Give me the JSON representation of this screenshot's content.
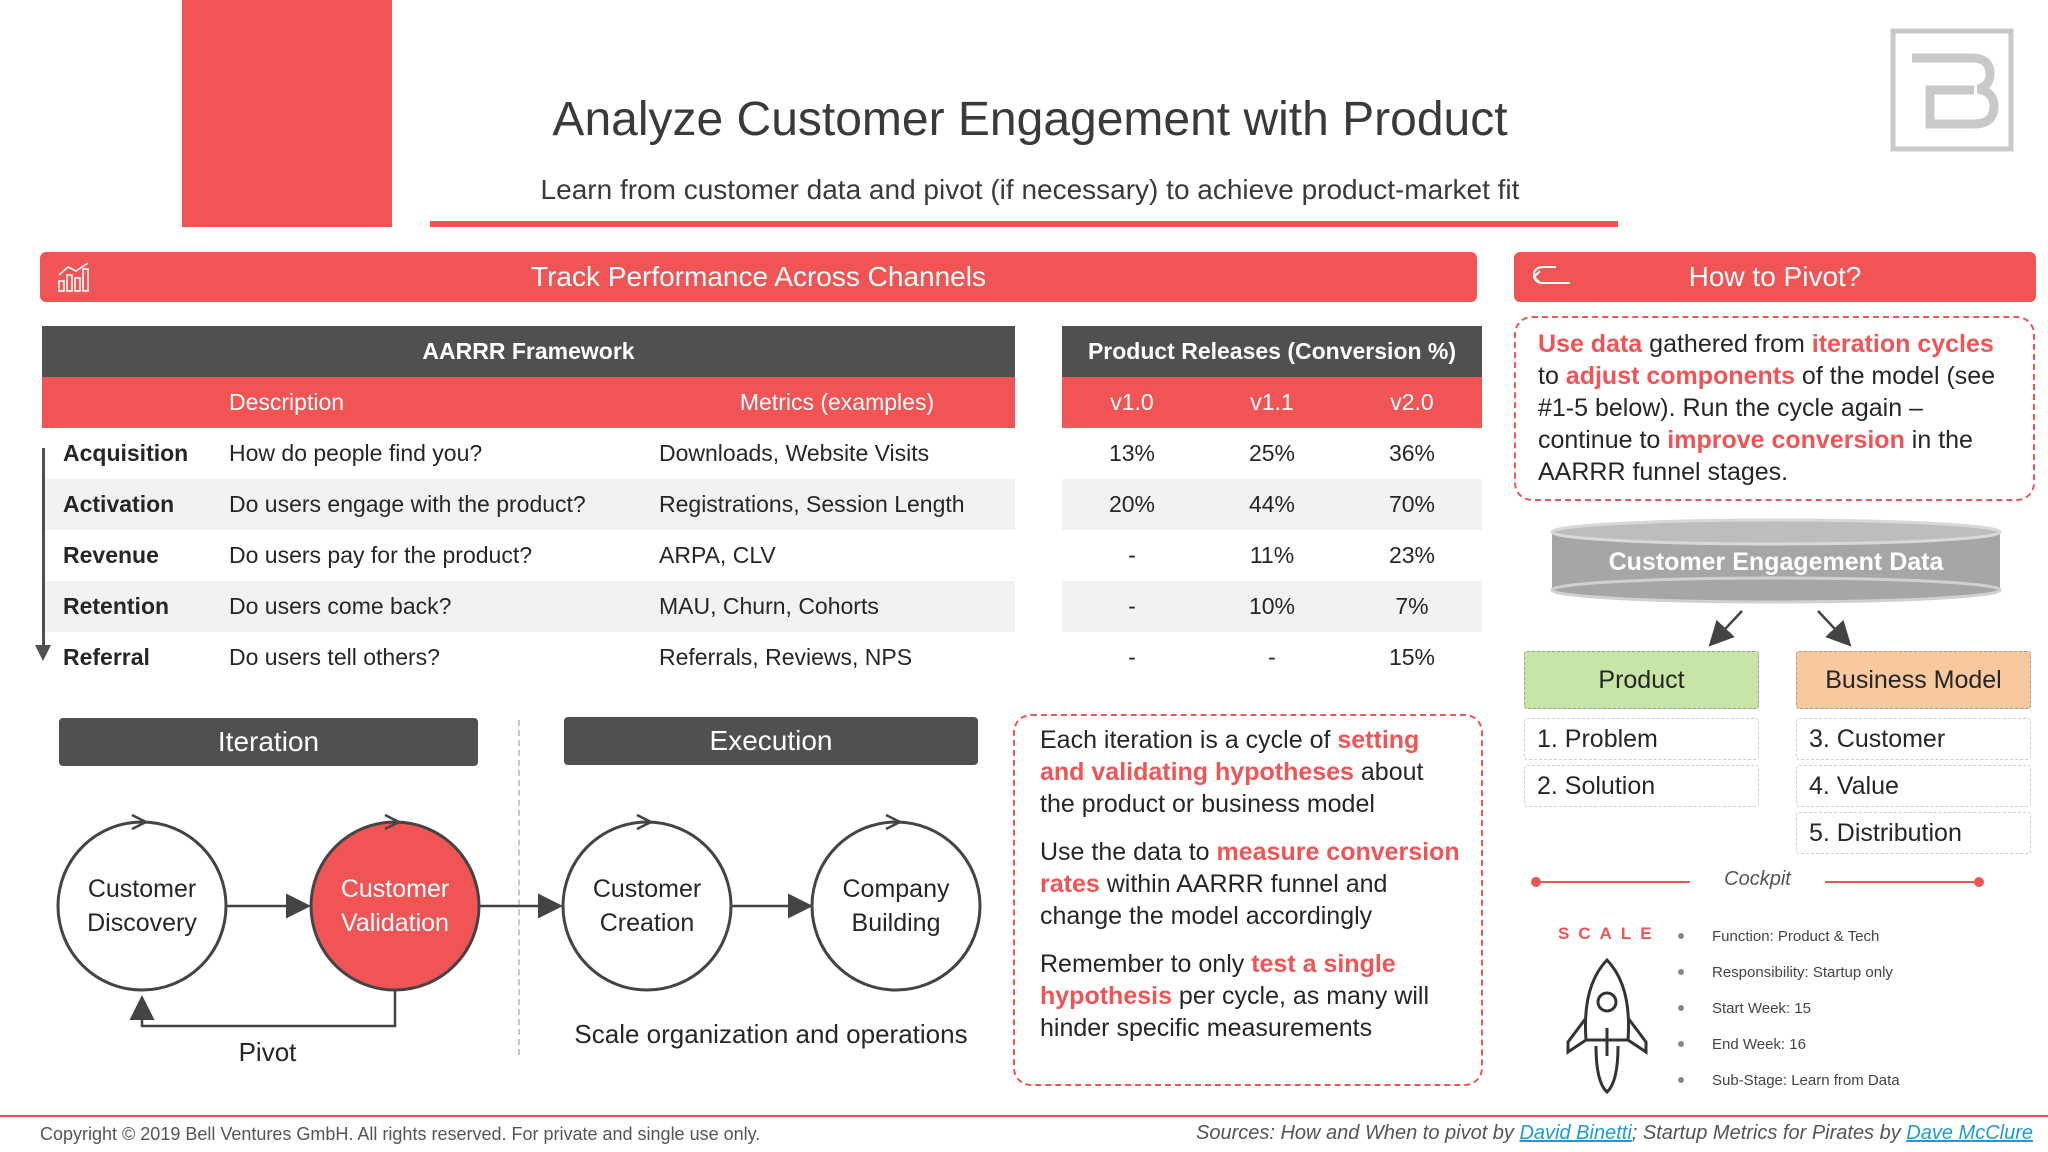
{
  "header": {
    "title": "Analyze Customer Engagement with Product",
    "subtitle": "Learn from customer data and pivot (if necessary) to achieve product-market fit",
    "accent_color": "#f15454"
  },
  "track_bar": {
    "label": "Track Performance Across Channels",
    "icon": "chart-icon"
  },
  "pivot_bar": {
    "label": "How to Pivot?",
    "icon": "return-arrow-icon"
  },
  "aarrr": {
    "title": "AARRR Framework",
    "col_description": "Description",
    "col_metrics": "Metrics (examples)",
    "rows": [
      {
        "stage": "Acquisition",
        "description": "How do people find you?",
        "metrics": "Downloads, Website Visits"
      },
      {
        "stage": "Activation",
        "description": "Do users engage with the product?",
        "metrics": "Registrations, Session Length"
      },
      {
        "stage": "Revenue",
        "description": "Do users pay for the product?",
        "metrics": "ARPA, CLV"
      },
      {
        "stage": "Retention",
        "description": "Do users come back?",
        "metrics": "MAU, Churn, Cohorts"
      },
      {
        "stage": "Referral",
        "description": "Do users tell others?",
        "metrics": "Referrals, Reviews, NPS"
      }
    ]
  },
  "releases": {
    "title": "Product  Releases (Conversion %)",
    "versions": [
      "v1.0",
      "v1.1",
      "v2.0"
    ],
    "rows": [
      [
        "13%",
        "25%",
        "36%"
      ],
      [
        "20%",
        "44%",
        "70%"
      ],
      [
        "-",
        "11%",
        "23%"
      ],
      [
        "-",
        "10%",
        "7%"
      ],
      [
        "-",
        "-",
        "15%"
      ]
    ]
  },
  "phases": {
    "iteration": "Iteration",
    "execution": "Execution",
    "circles": [
      "Customer Discovery",
      "Customer Validation",
      "Customer Creation",
      "Company Building"
    ],
    "pivot": "Pivot",
    "execution_caption": "Scale organization and operations"
  },
  "note": {
    "p1": [
      "Each iteration is a cycle of ",
      "setting and validating hypotheses",
      " about the product or business model"
    ],
    "p2": [
      "Use the data to ",
      "measure conversion rates",
      " within AARRR funnel and change the model accordingly"
    ],
    "p3": [
      "Remember to only ",
      "test a single hypothesis",
      " per cycle, as many will hinder specific measurements"
    ]
  },
  "pivot_text": {
    "parts": [
      "Use data",
      " gathered from ",
      "iteration cycles",
      " to ",
      "adjust components",
      " of the model (see #1-5 below). Run the cycle again – continue to ",
      "improve conversion",
      " in the AARRR funnel stages."
    ]
  },
  "engagement": {
    "data_label": "Customer Engagement Data",
    "product": {
      "label": "Product",
      "items": [
        "1. Problem",
        "2. Solution"
      ]
    },
    "business_model": {
      "label": "Business Model",
      "items": [
        "3. Customer",
        "4. Value",
        "5. Distribution"
      ]
    },
    "product_color": "#c6e5a6",
    "business_color": "#f8c99e"
  },
  "cockpit": {
    "label": "Cockpit",
    "scale_word": "SCALE",
    "items": [
      "Function: Product & Tech",
      "Responsibility: Startup only",
      "Start Week: 15",
      "End Week: 16",
      "Sub-Stage: Learn from Data"
    ]
  },
  "footer": {
    "copyright": "Copyright © 2019 Bell Ventures GmbH. All rights reserved. For private and single use only.",
    "sources_prefix": "Sources: How and When to pivot by ",
    "author1": "David Binetti",
    "sources_middle": "; Startup Metrics for Pirates by ",
    "author2": "Dave McClure"
  }
}
